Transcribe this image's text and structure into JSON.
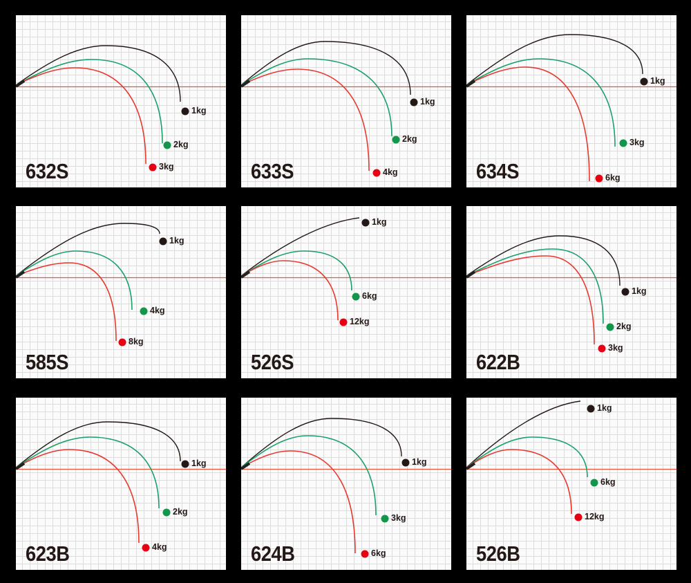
{
  "colors": {
    "line_1kg": "#231815",
    "line_mid": "#1aa06a",
    "line_max": "#e8382e",
    "dot_1kg": "#231815",
    "dot_mid": "#12964a",
    "dot_max": "#e60012",
    "baseline": "#e8553c"
  },
  "panels": [
    {
      "model": "632S",
      "weights": [
        "1kg",
        "2kg",
        "3kg"
      ]
    },
    {
      "model": "633S",
      "weights": [
        "1kg",
        "2kg",
        "4kg"
      ]
    },
    {
      "model": "634S",
      "weights": [
        "1kg",
        "3kg",
        "6kg"
      ]
    },
    {
      "model": "585S",
      "weights": [
        "1kg",
        "4kg",
        "8kg"
      ]
    },
    {
      "model": "526S",
      "weights": [
        "1kg",
        "6kg",
        "12kg"
      ]
    },
    {
      "model": "622B",
      "weights": [
        "1kg",
        "2kg",
        "3kg"
      ]
    },
    {
      "model": "623B",
      "weights": [
        "1kg",
        "2kg",
        "4kg"
      ]
    },
    {
      "model": "624B",
      "weights": [
        "1kg",
        "3kg",
        "6kg"
      ]
    },
    {
      "model": "526B",
      "weights": [
        "1kg",
        "6kg",
        "12kg"
      ]
    }
  ]
}
